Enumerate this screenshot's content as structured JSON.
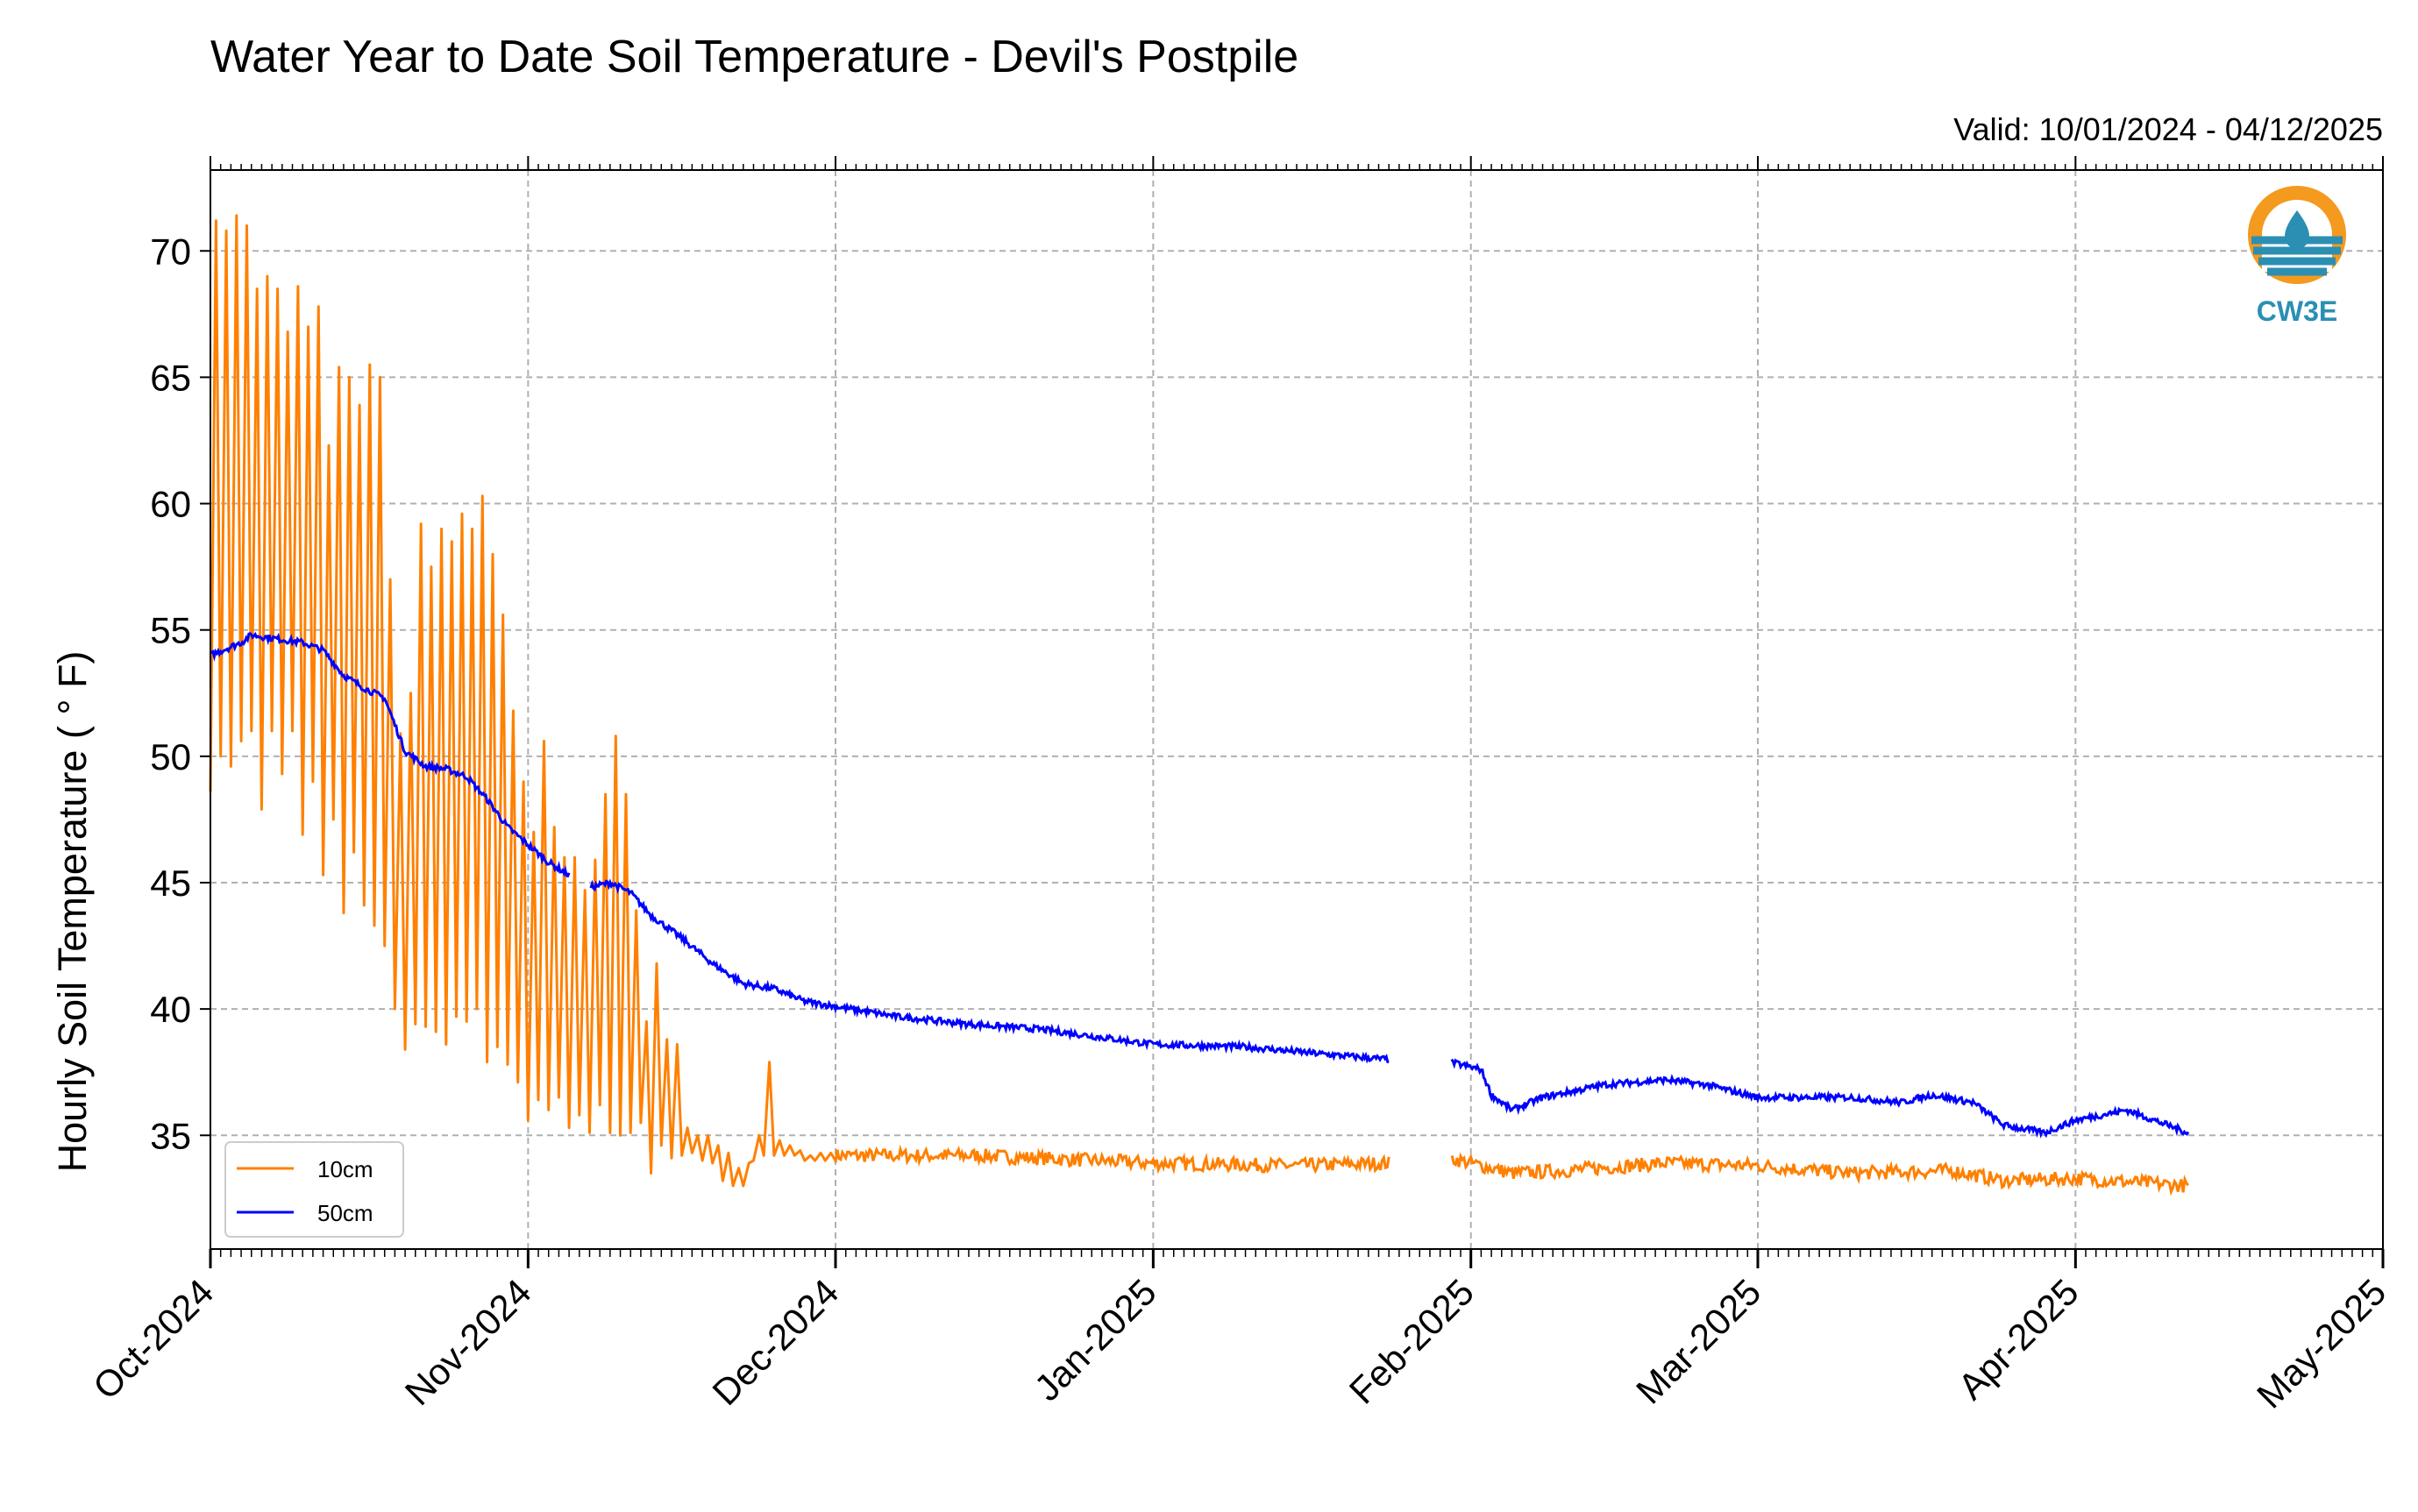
{
  "chart_data": {
    "type": "line",
    "title": "Water Year to Date Soil Temperature - Devil's Postpile",
    "subtitle": "Valid: 10/01/2024 - 04/12/2025",
    "ylabel": "Hourly Soil Temperature ( $^\\circ$F)",
    "ylabel_display": "Hourly Soil Temperature ( ° F)",
    "xlabel": "",
    "xlim": [
      "2024-10-01",
      "2025-05-01"
    ],
    "ylim": [
      30.5,
      73.2
    ],
    "x_ticks": [
      "2024-10-01",
      "2024-11-01",
      "2024-12-01",
      "2025-01-01",
      "2025-02-01",
      "2025-03-01",
      "2025-04-01",
      "2025-05-01"
    ],
    "x_tick_labels": [
      "Oct-2024",
      "Nov-2024",
      "Dec-2024",
      "Jan-2025",
      "Feb-2025",
      "Mar-2025",
      "Apr-2025",
      "May-2025"
    ],
    "y_ticks": [
      35,
      40,
      45,
      50,
      55,
      60,
      65,
      70
    ],
    "y_tick_labels": [
      "35",
      "40",
      "45",
      "50",
      "55",
      "60",
      "65",
      "70"
    ],
    "grid": true,
    "legend_position": "bottom-left",
    "series": [
      {
        "name": "10cm",
        "color": "#ff8000",
        "daily_peaks": [
          [
            "2024-10-01",
            71.2,
            48.6
          ],
          [
            "2024-10-02",
            70.8,
            50.0
          ],
          [
            "2024-10-03",
            71.4,
            49.6
          ],
          [
            "2024-10-04",
            71.0,
            50.6
          ],
          [
            "2024-10-05",
            68.5,
            51.0
          ],
          [
            "2024-10-06",
            69.0,
            47.9
          ],
          [
            "2024-10-07",
            68.5,
            51.0
          ],
          [
            "2024-10-08",
            66.8,
            49.3
          ],
          [
            "2024-10-09",
            68.6,
            51.0
          ],
          [
            "2024-10-10",
            67.0,
            46.9
          ],
          [
            "2024-10-11",
            67.8,
            49.0
          ],
          [
            "2024-10-12",
            62.3,
            45.3
          ],
          [
            "2024-10-13",
            65.4,
            47.5
          ],
          [
            "2024-10-14",
            65.0,
            43.8
          ],
          [
            "2024-10-15",
            63.9,
            46.2
          ],
          [
            "2024-10-16",
            65.5,
            44.1
          ],
          [
            "2024-10-17",
            65.0,
            43.3
          ],
          [
            "2024-10-18",
            57.0,
            42.5
          ],
          [
            "2024-10-19",
            50.9,
            40.0
          ],
          [
            "2024-10-20",
            52.5,
            38.4
          ],
          [
            "2024-10-21",
            59.2,
            39.4
          ],
          [
            "2024-10-22",
            57.5,
            39.3
          ],
          [
            "2024-10-23",
            59.0,
            39.1
          ],
          [
            "2024-10-24",
            58.5,
            38.6
          ],
          [
            "2024-10-25",
            59.6,
            39.7
          ],
          [
            "2024-10-26",
            59.0,
            39.5
          ],
          [
            "2024-10-27",
            60.3,
            40.0
          ],
          [
            "2024-10-28",
            58.0,
            37.9
          ],
          [
            "2024-10-29",
            55.6,
            38.5
          ],
          [
            "2024-10-30",
            51.8,
            37.8
          ],
          [
            "2024-10-31",
            49.0,
            37.1
          ],
          [
            "2024-11-01",
            47.0,
            35.6
          ],
          [
            "2024-11-02",
            50.6,
            36.4
          ],
          [
            "2024-11-03",
            47.2,
            36.0
          ],
          [
            "2024-11-04",
            46.0,
            36.5
          ],
          [
            "2024-11-05",
            46.0,
            35.3
          ],
          [
            "2024-11-06",
            44.7,
            35.8
          ],
          [
            "2024-11-07",
            45.9,
            35.1
          ],
          [
            "2024-11-08",
            48.5,
            36.2
          ],
          [
            "2024-11-09",
            50.8,
            35.1
          ],
          [
            "2024-11-10",
            48.5,
            35.0
          ],
          [
            "2024-11-11",
            43.9,
            35.1
          ],
          [
            "2024-11-12",
            39.5,
            35.5
          ],
          [
            "2024-11-13",
            41.8,
            33.5
          ],
          [
            "2024-11-14",
            38.8,
            34.6
          ],
          [
            "2024-11-15",
            38.6,
            34.1
          ],
          [
            "2024-11-16",
            35.3,
            34.2
          ],
          [
            "2024-11-17",
            35.0,
            34.3
          ],
          [
            "2024-11-18",
            35.0,
            34.0
          ],
          [
            "2024-11-19",
            34.6,
            33.9
          ],
          [
            "2024-11-20",
            34.3,
            33.2
          ],
          [
            "2024-11-21",
            33.7,
            33.0
          ],
          [
            "2024-11-22",
            33.9,
            33.0
          ],
          [
            "2024-11-23",
            35.0,
            34.0
          ],
          [
            "2024-11-24",
            37.9,
            34.2
          ],
          [
            "2024-11-25",
            34.8,
            34.2
          ],
          [
            "2024-11-26",
            34.6,
            34.2
          ],
          [
            "2024-11-27",
            34.4,
            34.2
          ],
          [
            "2024-11-28",
            34.2,
            34.0
          ],
          [
            "2024-11-29",
            34.3,
            34.0
          ],
          [
            "2024-11-30",
            34.3,
            34.0
          ]
        ],
        "daily_means": [
          [
            "2024-12-01",
            34.2
          ],
          [
            "2024-12-15",
            34.2
          ],
          [
            "2025-01-01",
            33.9
          ],
          [
            "2025-01-15",
            33.8
          ],
          [
            "2025-01-24",
            33.9
          ],
          [
            "2025-01-25",
            null
          ],
          [
            "2025-01-29",
            null
          ],
          [
            "2025-01-30",
            34.1
          ],
          [
            "2025-02-05",
            33.5
          ],
          [
            "2025-02-10",
            33.6
          ],
          [
            "2025-02-20",
            33.9
          ],
          [
            "2025-03-01",
            33.8
          ],
          [
            "2025-03-10",
            33.5
          ],
          [
            "2025-03-20",
            33.6
          ],
          [
            "2025-03-25",
            33.2
          ],
          [
            "2025-04-01",
            33.3
          ],
          [
            "2025-04-12",
            33.0
          ]
        ]
      },
      {
        "name": "50cm",
        "color": "#0000ff",
        "values": [
          [
            "2024-10-01",
            54.0
          ],
          [
            "2024-10-04",
            54.5
          ],
          [
            "2024-10-05",
            54.8
          ],
          [
            "2024-10-10",
            54.5
          ],
          [
            "2024-10-12",
            54.2
          ],
          [
            "2024-10-14",
            53.2
          ],
          [
            "2024-10-16",
            52.7
          ],
          [
            "2024-10-18",
            52.3
          ],
          [
            "2024-10-20",
            50.2
          ],
          [
            "2024-10-22",
            49.6
          ],
          [
            "2024-10-24",
            49.5
          ],
          [
            "2024-10-26",
            49.2
          ],
          [
            "2024-10-28",
            48.3
          ],
          [
            "2024-10-30",
            47.2
          ],
          [
            "2024-11-01",
            46.5
          ],
          [
            "2024-11-03",
            45.8
          ],
          [
            "2024-11-05",
            45.3
          ],
          [
            "2024-11-06",
            null
          ],
          [
            "2024-11-07",
            44.8
          ],
          [
            "2024-11-09",
            45.0
          ],
          [
            "2024-11-11",
            44.6
          ],
          [
            "2024-11-13",
            43.7
          ],
          [
            "2024-11-16",
            42.8
          ],
          [
            "2024-11-19",
            41.8
          ],
          [
            "2024-11-22",
            41.0
          ],
          [
            "2024-11-25",
            40.8
          ],
          [
            "2024-11-28",
            40.3
          ],
          [
            "2024-12-01",
            40.1
          ],
          [
            "2024-12-07",
            39.7
          ],
          [
            "2024-12-14",
            39.4
          ],
          [
            "2024-12-21",
            39.2
          ],
          [
            "2025-01-01",
            38.6
          ],
          [
            "2025-01-10",
            38.5
          ],
          [
            "2025-01-18",
            38.2
          ],
          [
            "2025-01-24",
            38.0
          ],
          [
            "2025-01-25",
            null
          ],
          [
            "2025-01-29",
            null
          ],
          [
            "2025-01-30",
            37.9
          ],
          [
            "2025-02-02",
            37.6
          ],
          [
            "2025-02-03",
            36.6
          ],
          [
            "2025-02-05",
            36.0
          ],
          [
            "2025-02-08",
            36.5
          ],
          [
            "2025-02-14",
            37.0
          ],
          [
            "2025-02-20",
            37.2
          ],
          [
            "2025-02-24",
            37.0
          ],
          [
            "2025-03-01",
            36.5
          ],
          [
            "2025-03-10",
            36.5
          ],
          [
            "2025-03-15",
            36.3
          ],
          [
            "2025-03-18",
            36.6
          ],
          [
            "2025-03-22",
            36.3
          ],
          [
            "2025-03-25",
            35.4
          ],
          [
            "2025-03-29",
            35.1
          ],
          [
            "2025-04-01",
            35.6
          ],
          [
            "2025-04-06",
            36.0
          ],
          [
            "2025-04-12",
            35.1
          ]
        ]
      }
    ]
  },
  "legend": {
    "items": [
      {
        "label": "10cm",
        "color": "#ff8000"
      },
      {
        "label": "50cm",
        "color": "#0000ff"
      }
    ]
  },
  "logo": {
    "text": "CW3E",
    "color": "#2b8fb3",
    "accent": "#f39a1f"
  }
}
